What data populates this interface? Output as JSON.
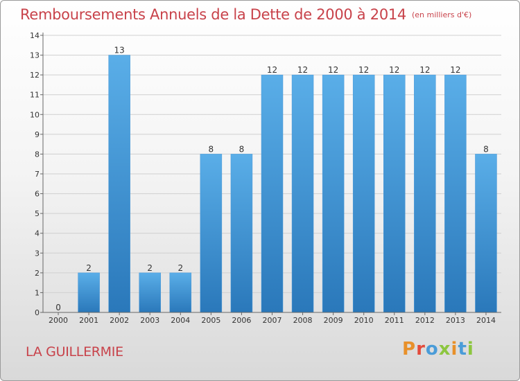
{
  "header": {
    "title": "Remboursements Annuels de la Dette de 2000 à 2014",
    "unit": "(en milliers d'€)"
  },
  "footer": {
    "commune": "LA GUILLERMIE",
    "logo_text": "Proxiti",
    "logo_colors": [
      "#e8902a",
      "#e34b3c",
      "#4a9cd8",
      "#8cc63f",
      "#e8902a",
      "#4a9cd8",
      "#8cc63f"
    ]
  },
  "colors": {
    "bar_top": "#5aaee8",
    "bar_bottom": "#2a78ba",
    "grid": "#cfcfcf",
    "title": "#c8424a"
  },
  "chart_data": {
    "type": "bar",
    "categories": [
      "2000",
      "2001",
      "2002",
      "2003",
      "2004",
      "2005",
      "2006",
      "2007",
      "2008",
      "2009",
      "2010",
      "2011",
      "2012",
      "2013",
      "2014"
    ],
    "values": [
      0,
      2,
      13,
      2,
      2,
      8,
      8,
      12,
      12,
      12,
      12,
      12,
      12,
      12,
      8
    ],
    "value_labels": [
      "0",
      "2",
      "13",
      "2",
      "2",
      "8",
      "8",
      "12",
      "12",
      "12",
      "12",
      "12",
      "12",
      "12",
      "8"
    ],
    "title": "Remboursements Annuels de la Dette de 2000 à 2014",
    "xlabel": "",
    "ylabel": "",
    "ylim": [
      0,
      14
    ],
    "yticks": [
      "0",
      "1",
      "2",
      "3",
      "4",
      "5",
      "6",
      "7",
      "8",
      "9",
      "10",
      "11",
      "12",
      "13",
      "14"
    ],
    "grid": true
  }
}
